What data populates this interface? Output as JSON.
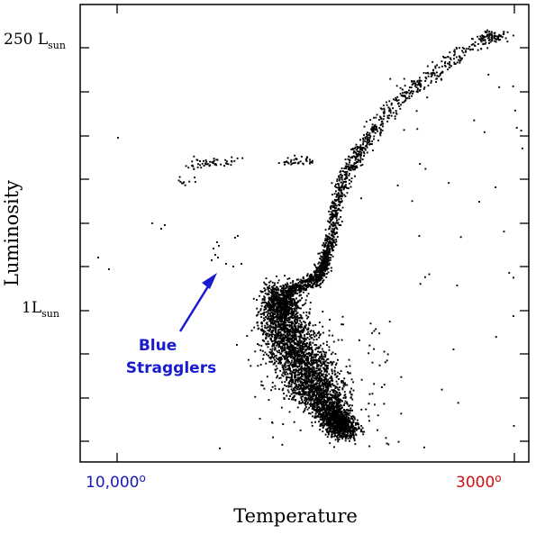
{
  "chart_data": {
    "type": "scatter",
    "title": "",
    "xlabel": "Temperature",
    "ylabel": "Luminosity",
    "x_tick_labels": [
      {
        "label": "10,000",
        "degree": "o",
        "color": "#1a1ab8"
      },
      {
        "label": "3000",
        "degree": "o",
        "color": "#d01010"
      }
    ],
    "y_tick_labels": [
      {
        "main": "250  L",
        "sub": "sun"
      },
      {
        "main": "1L",
        "sub": "sun"
      }
    ],
    "annotation": {
      "lines": [
        "Blue",
        "Stragglers"
      ],
      "color": "#1a1ad0"
    },
    "grid": false,
    "legend": "none",
    "point_color": "#000000",
    "notes_visible": "x axis is inverted (hot on the left, cool on the right); luminosity on a log scale"
  }
}
